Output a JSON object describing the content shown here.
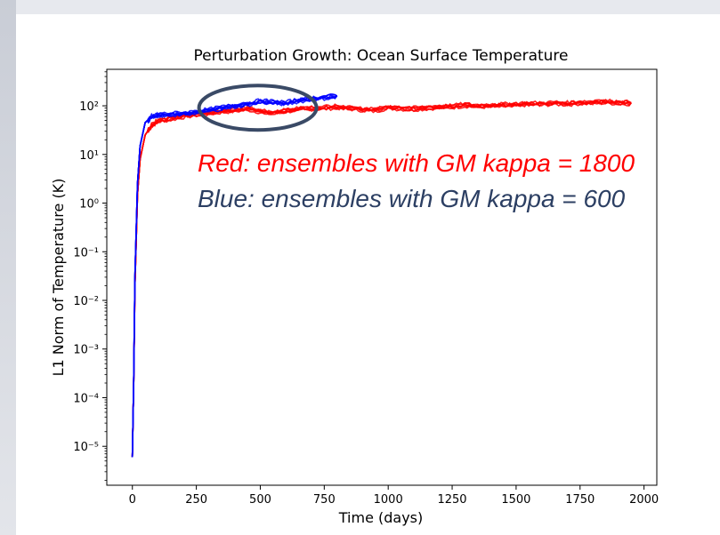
{
  "chart_data": {
    "type": "line",
    "title": "Perturbation Growth: Ocean Surface Temperature",
    "xlabel": "Time (days)",
    "ylabel": "L1 Norm of Temperature (K)",
    "xlim": [
      -100,
      2050
    ],
    "ylim_log10": [
      -5.8,
      2.75
    ],
    "y_scale": "log",
    "x_ticks": [
      0,
      250,
      500,
      750,
      1000,
      1250,
      1500,
      1750,
      2000
    ],
    "x_tick_labels": [
      "0",
      "250",
      "500",
      "750",
      "1000",
      "1250",
      "1500",
      "1750",
      "2000"
    ],
    "y_tick_exponents": [
      -5,
      -4,
      -3,
      -2,
      -1,
      0,
      1,
      2
    ],
    "y_tick_labels": [
      "10⁻⁵",
      "10⁻⁴",
      "10⁻³",
      "10⁻²",
      "10⁻¹",
      "10⁰",
      "10¹",
      "10²"
    ],
    "grid": false,
    "series": [
      {
        "name": "Red: ensembles with GM kappa = 1800",
        "color": "#ff0000",
        "x": [
          0,
          5,
          10,
          20,
          30,
          50,
          75,
          100,
          150,
          200,
          250,
          300,
          350,
          400,
          450,
          500,
          550,
          600,
          650,
          700,
          750,
          800,
          850,
          900,
          950,
          1000,
          1050,
          1100,
          1150,
          1200,
          1250,
          1300,
          1350,
          1400,
          1450,
          1500,
          1550,
          1600,
          1650,
          1700,
          1750,
          1800,
          1850,
          1900,
          1950
        ],
        "y": [
          6e-06,
          0.0002,
          0.02,
          1.5,
          8,
          25,
          40,
          50,
          55,
          62,
          68,
          72,
          78,
          82,
          88,
          78,
          72,
          80,
          88,
          90,
          92,
          96,
          92,
          85,
          82,
          95,
          90,
          88,
          92,
          97,
          98,
          105,
          100,
          102,
          105,
          108,
          112,
          110,
          115,
          112,
          118,
          120,
          122,
          118,
          115
        ]
      },
      {
        "name": "Blue: ensembles with GM kappa = 600",
        "color": "#0000ff",
        "x": [
          0,
          5,
          10,
          20,
          30,
          50,
          75,
          100,
          150,
          200,
          250,
          300,
          350,
          400,
          450,
          500,
          550,
          600,
          650,
          700,
          750,
          800
        ],
        "y": [
          6e-06,
          0.0002,
          0.03,
          2.5,
          15,
          45,
          60,
          65,
          68,
          70,
          75,
          82,
          92,
          100,
          110,
          125,
          120,
          115,
          130,
          140,
          150,
          160
        ]
      }
    ],
    "annotations": [
      {
        "text": "Red: ensembles with GM kappa = 1800",
        "color": "#ff0000"
      },
      {
        "text": "Blue: ensembles with GM kappa = 600",
        "color": "#2c3f63"
      }
    ],
    "highlight_ellipse": {
      "x_center": 490,
      "y_log10_center": 1.96,
      "color": "#3a4a66"
    }
  }
}
